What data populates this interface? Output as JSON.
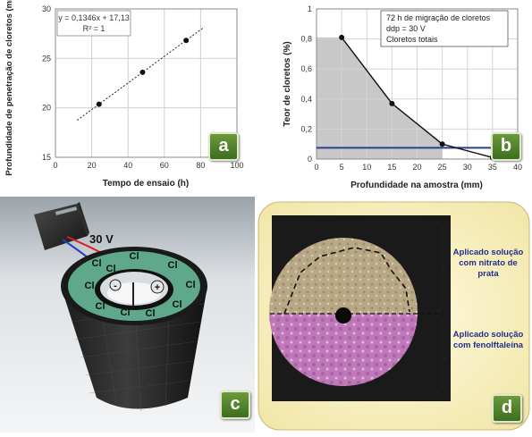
{
  "chart_data": [
    {
      "type": "scatter",
      "panel_label": "a",
      "xlabel": "Tempo de ensaio (h)",
      "ylabel": "Profundidade de penetração de cloretos (mm)",
      "xlim": [
        0,
        100
      ],
      "ylim": [
        15,
        30
      ],
      "x_ticks": [
        "0",
        "20",
        "40",
        "60",
        "80",
        "100"
      ],
      "y_ticks": [
        "15",
        "20",
        "25",
        "30"
      ],
      "grid": true,
      "x": [
        24,
        48,
        72
      ],
      "y": [
        20.36,
        23.59,
        26.82
      ],
      "trendline": {
        "equation": "y = 0,1346x + 17,13",
        "r2": "R² = 1",
        "x_range": [
          12,
          82
        ]
      }
    },
    {
      "type": "line",
      "panel_label": "b",
      "xlabel": "Profundidade na amostra (mm)",
      "ylabel": "Teor de cloretos (%)",
      "xlim": [
        0,
        40
      ],
      "ylim": [
        0,
        1
      ],
      "x_ticks": [
        "0",
        "5",
        "10",
        "15",
        "20",
        "25",
        "30",
        "35",
        "40"
      ],
      "y_ticks": [
        "0",
        "0,2",
        "0,4",
        "0,6",
        "0,8",
        "1"
      ],
      "grid": true,
      "x": [
        5,
        15,
        25,
        35
      ],
      "y": [
        0.81,
        0.37,
        0.1,
        0.01
      ],
      "threshold": 0.075,
      "threshold_color": "#2b3d8f",
      "shaded_color": "#c8c8c8",
      "annotation": [
        "72 h de migração de cloretos",
        "ddp = 30 V",
        "Cloretos totais"
      ]
    }
  ],
  "panel_c": {
    "badge": "c",
    "voltage_label": "30 V",
    "minus_label": "-",
    "plus_label": "+",
    "ion_label": "Cl",
    "ion_count": 10,
    "colors": {
      "wire_red": "#d42020",
      "wire_blue": "#2040c0",
      "ring": "#5fa88c"
    }
  },
  "panel_d": {
    "badge": "d",
    "label_top": "Aplicado solução com nitrato de prata",
    "label_bottom": "Aplicado solução com fenolftaleína",
    "colors": {
      "frame": "#fbf3c8",
      "label_text": "#1f2f8a",
      "top_half": "#b8a886",
      "bottom_half": "#c079b8"
    }
  }
}
